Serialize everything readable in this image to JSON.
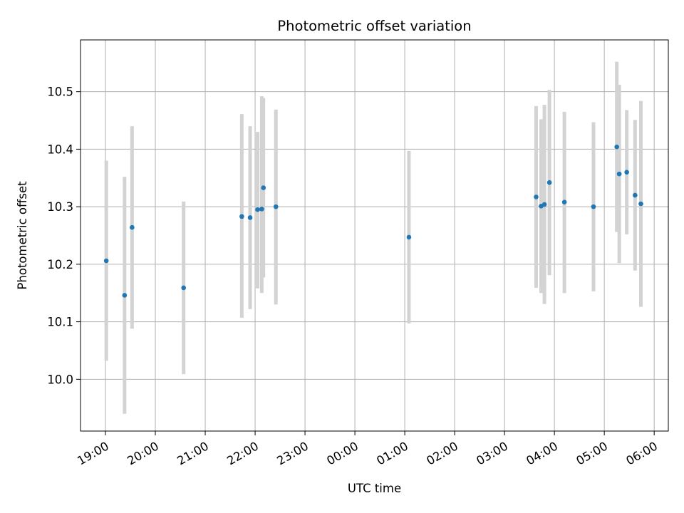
{
  "chart_data": {
    "type": "scatter",
    "title": "Photometric offset variation",
    "xlabel": "UTC time",
    "ylabel": "Photometric offset",
    "x_axis_kind": "time",
    "x_tick_labels": [
      "19:00",
      "20:00",
      "21:00",
      "22:00",
      "23:00",
      "00:00",
      "01:00",
      "02:00",
      "03:00",
      "04:00",
      "05:00",
      "06:00"
    ],
    "x_tick_times": [
      "19:00",
      "20:00",
      "21:00",
      "22:00",
      "23:00",
      "00:00",
      "01:00",
      "02:00",
      "03:00",
      "04:00",
      "05:00",
      "06:00"
    ],
    "xlim": [
      "18:30",
      "06:17"
    ],
    "ylim": [
      9.91,
      10.59
    ],
    "y_ticks": [
      10.0,
      10.1,
      10.2,
      10.3,
      10.4,
      10.5
    ],
    "y_tick_labels": [
      "10.0",
      "10.1",
      "10.2",
      "10.3",
      "10.4",
      "10.5"
    ],
    "grid": true,
    "point_color": "#1f77b4",
    "errorbar_color": "#d3d3d3",
    "points": [
      {
        "x": "19:01",
        "y": 10.206,
        "y_low": 10.032,
        "y_high": 10.38
      },
      {
        "x": "19:23",
        "y": 10.146,
        "y_low": 9.94,
        "y_high": 10.352
      },
      {
        "x": "19:32",
        "y": 10.264,
        "y_low": 10.088,
        "y_high": 10.44
      },
      {
        "x": "20:34",
        "y": 10.159,
        "y_low": 10.009,
        "y_high": 10.309
      },
      {
        "x": "21:44",
        "y": 10.283,
        "y_low": 10.107,
        "y_high": 10.461
      },
      {
        "x": "21:54",
        "y": 10.281,
        "y_low": 10.122,
        "y_high": 10.44
      },
      {
        "x": "22:03",
        "y": 10.295,
        "y_low": 10.158,
        "y_high": 10.43
      },
      {
        "x": "22:08",
        "y": 10.296,
        "y_low": 10.15,
        "y_high": 10.492
      },
      {
        "x": "22:10",
        "y": 10.333,
        "y_low": 10.177,
        "y_high": 10.489
      },
      {
        "x": "22:25",
        "y": 10.3,
        "y_low": 10.13,
        "y_high": 10.469
      },
      {
        "x": "01:05",
        "y": 10.247,
        "y_low": 10.097,
        "y_high": 10.397
      },
      {
        "x": "03:38",
        "y": 10.317,
        "y_low": 10.159,
        "y_high": 10.475
      },
      {
        "x": "03:44",
        "y": 10.301,
        "y_low": 10.15,
        "y_high": 10.452
      },
      {
        "x": "03:48",
        "y": 10.304,
        "y_low": 10.131,
        "y_high": 10.477
      },
      {
        "x": "03:54",
        "y": 10.342,
        "y_low": 10.181,
        "y_high": 10.503
      },
      {
        "x": "04:12",
        "y": 10.308,
        "y_low": 10.15,
        "y_high": 10.465
      },
      {
        "x": "04:47",
        "y": 10.3,
        "y_low": 10.153,
        "y_high": 10.447
      },
      {
        "x": "05:15",
        "y": 10.404,
        "y_low": 10.256,
        "y_high": 10.552
      },
      {
        "x": "05:18",
        "y": 10.357,
        "y_low": 10.202,
        "y_high": 10.512
      },
      {
        "x": "05:27",
        "y": 10.36,
        "y_low": 10.252,
        "y_high": 10.468
      },
      {
        "x": "05:37",
        "y": 10.32,
        "y_low": 10.189,
        "y_high": 10.451
      },
      {
        "x": "05:44",
        "y": 10.305,
        "y_low": 10.126,
        "y_high": 10.484
      }
    ]
  }
}
